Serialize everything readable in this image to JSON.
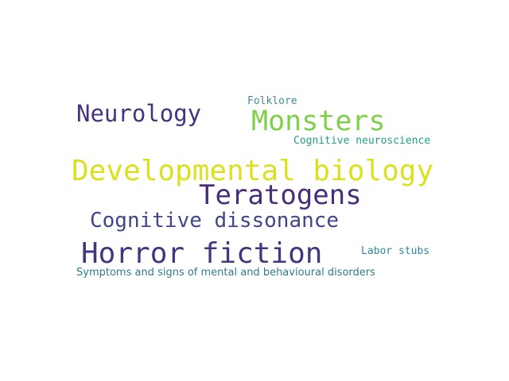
{
  "word_cloud": {
    "words": [
      {
        "text": "Folklore",
        "color": "#3b8c96"
      },
      {
        "text": "Neurology",
        "color": "#46337e"
      },
      {
        "text": "Monsters",
        "color": "#7ed04b"
      },
      {
        "text": "Cognitive neuroscience",
        "color": "#1fa187"
      },
      {
        "text": "Developmental biology",
        "color": "#dce11f"
      },
      {
        "text": "Teratogens",
        "color": "#472d7b"
      },
      {
        "text": "Cognitive dissonance",
        "color": "#404688"
      },
      {
        "text": "Labor stubs",
        "color": "#31889a"
      },
      {
        "text": "Horror fiction",
        "color": "#43357f"
      },
      {
        "text": "Symptoms and signs of mental and behavioural disorders",
        "color": "#2e7c8e"
      }
    ]
  }
}
